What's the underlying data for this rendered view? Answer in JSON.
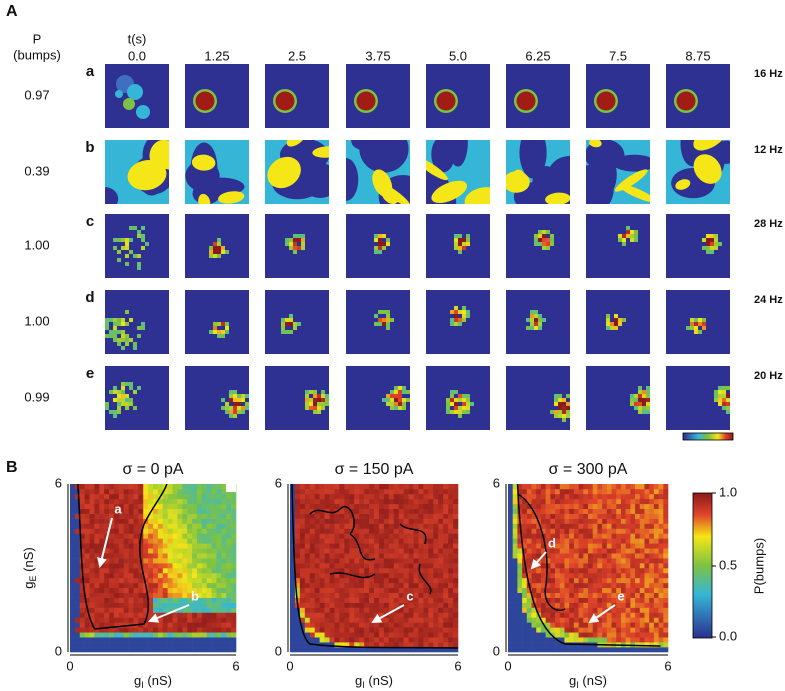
{
  "panel_a": {
    "label": "A",
    "p_header": "P",
    "p_header_unit": "(bumps)",
    "time_header": "t(s)",
    "times": [
      "0.0",
      "1.25",
      "2.5",
      "3.75",
      "5.0",
      "6.25",
      "7.5",
      "8.75"
    ],
    "rows": [
      {
        "letter": "a",
        "p": "0.97",
        "rate": "16 Hz"
      },
      {
        "letter": "b",
        "p": "0.39",
        "rate": "12 Hz"
      },
      {
        "letter": "c",
        "p": "1.00",
        "rate": "28 Hz"
      },
      {
        "letter": "d",
        "p": "1.00",
        "rate": "24 Hz"
      },
      {
        "letter": "e",
        "p": "0.99",
        "rate": "20 Hz"
      }
    ]
  },
  "panel_b": {
    "label": "B",
    "plots": [
      {
        "title": "σ = 0 pA",
        "arrows": [
          "a",
          "b"
        ]
      },
      {
        "title": "σ = 150 pA",
        "arrows": [
          "c"
        ]
      },
      {
        "title": "σ = 300 pA",
        "arrows": [
          "d",
          "e"
        ]
      }
    ],
    "y_label": {
      "main": "g",
      "sub": "E",
      "unit": " (nS)"
    },
    "x_label": {
      "main": "g",
      "sub": "I",
      "unit": " (nS)"
    },
    "ticks": [
      "0",
      "6"
    ],
    "colorbar": {
      "label": "P(bumps)",
      "ticks": [
        "1.0",
        "0.5",
        "0.0"
      ]
    }
  }
}
